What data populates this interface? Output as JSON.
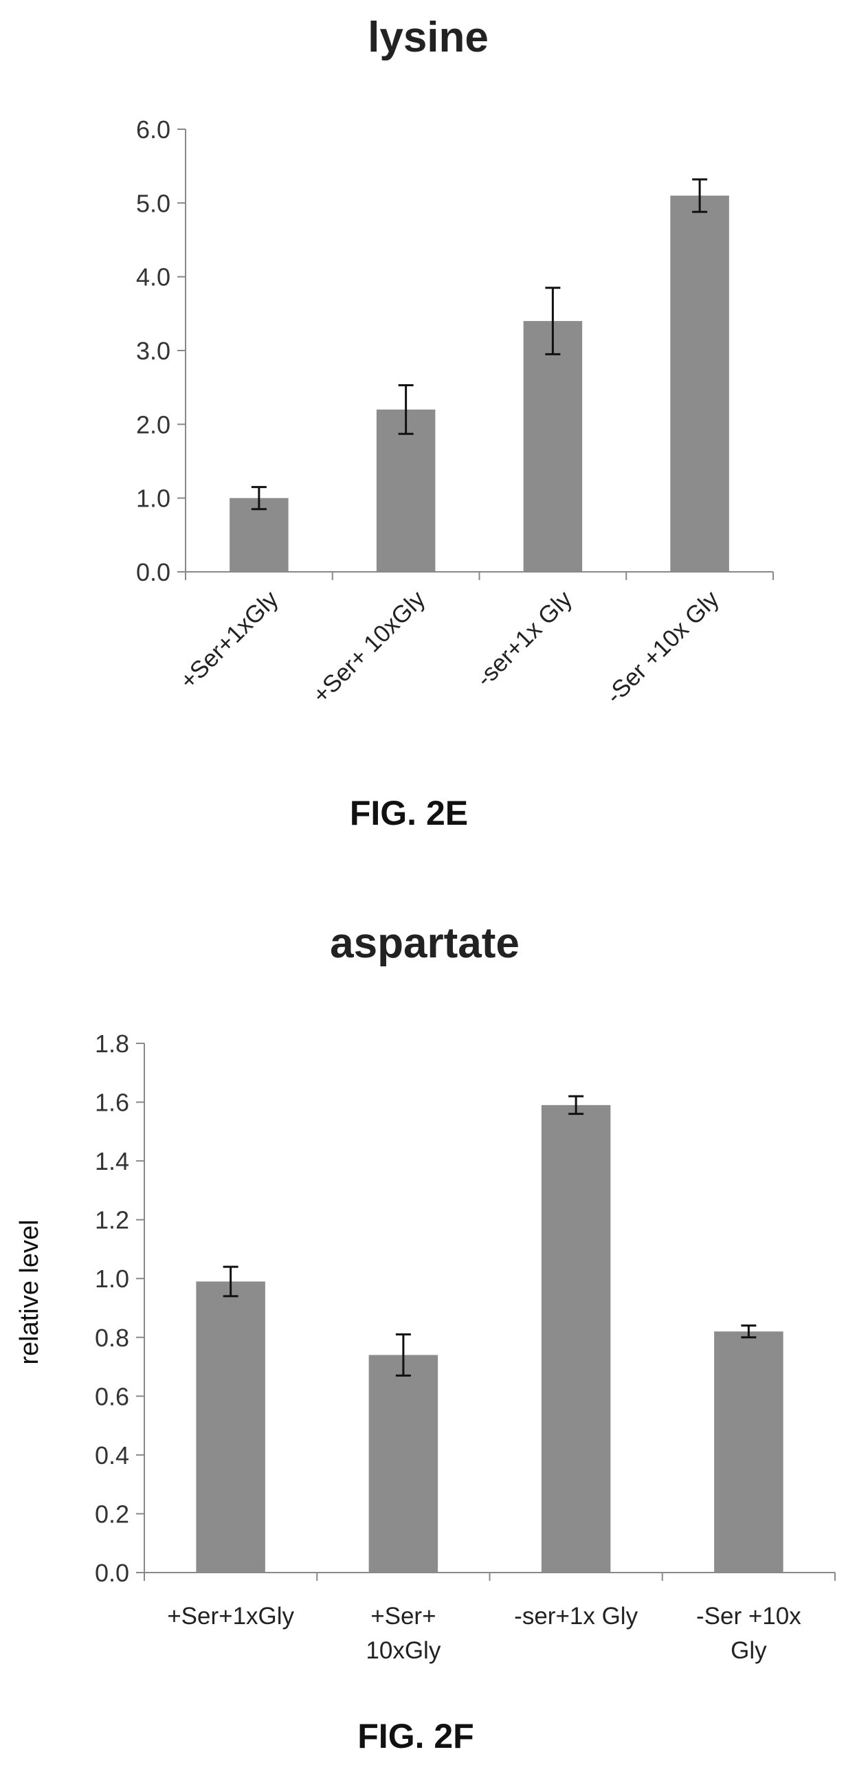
{
  "charts": [
    {
      "figure_label": "FIG. 2E",
      "categories_display": [
        "+Ser+1xGly",
        "+Ser+ 10xGly",
        "-ser+1x Gly",
        "-Ser +10x Gly"
      ],
      "ytick_labels": [
        "0.0",
        "1.0",
        "2.0",
        "3.0",
        "4.0",
        "5.0",
        "6.0"
      ]
    },
    {
      "figure_label": "FIG. 2F",
      "categories_display": [
        [
          "+Ser+1xGly"
        ],
        [
          "+Ser+",
          "10xGly"
        ],
        [
          "-ser+1x Gly"
        ],
        [
          "-Ser +10x",
          "Gly"
        ]
      ],
      "ytick_labels": [
        "0.0",
        "0.2",
        "0.4",
        "0.6",
        "0.8",
        "1.0",
        "1.2",
        "1.4",
        "1.6",
        "1.8"
      ]
    }
  ],
  "chart_data": [
    {
      "type": "bar",
      "title": "lysine",
      "categories": [
        "+Ser+1xGly",
        "+Ser+ 10xGly",
        "-ser+1x Gly",
        "-Ser +10x Gly"
      ],
      "values": [
        1.0,
        2.2,
        3.4,
        5.1
      ],
      "error": [
        0.15,
        0.33,
        0.45,
        0.22
      ],
      "xlabel": "",
      "ylabel": "",
      "ylim": [
        0,
        6
      ],
      "yticks": [
        0,
        1,
        2,
        3,
        4,
        5,
        6
      ],
      "grid": false,
      "bar_color": "#8c8c8c"
    },
    {
      "type": "bar",
      "title": "aspartate",
      "categories": [
        "+Ser+1xGly",
        "+Ser+ 10xGly",
        "-ser+1x Gly",
        "-Ser +10x Gly"
      ],
      "values": [
        0.99,
        0.74,
        1.59,
        0.82
      ],
      "error": [
        0.05,
        0.07,
        0.03,
        0.02
      ],
      "xlabel": "",
      "ylabel": "relative level",
      "ylim": [
        0,
        1.8
      ],
      "yticks": [
        0,
        0.2,
        0.4,
        0.6,
        0.8,
        1.0,
        1.2,
        1.4,
        1.6,
        1.8
      ],
      "grid": false,
      "bar_color": "#8c8c8c"
    }
  ]
}
